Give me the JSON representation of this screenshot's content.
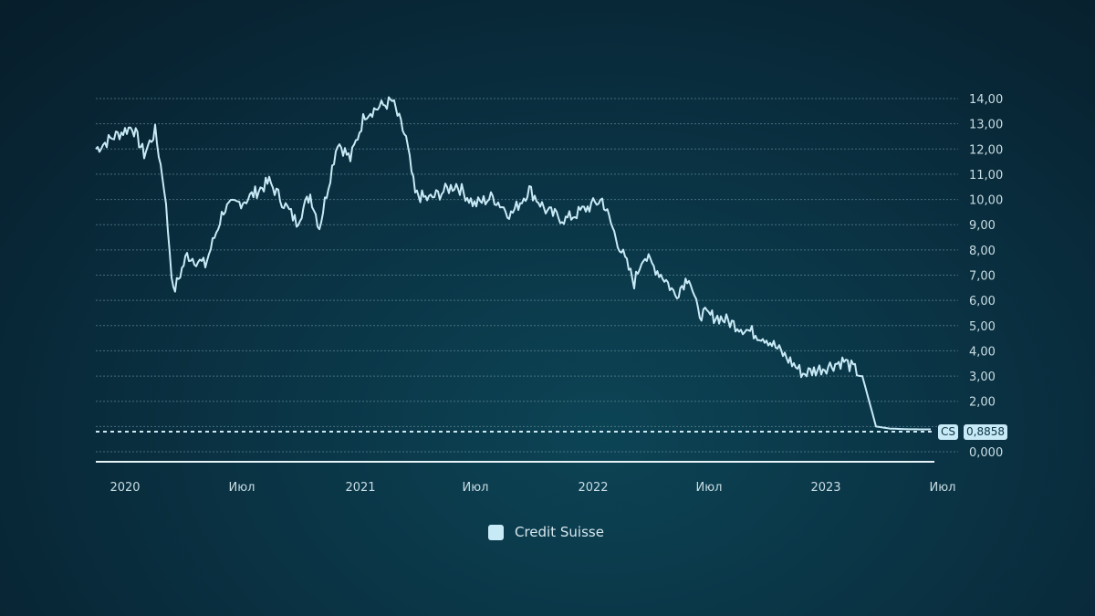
{
  "chart_data": {
    "type": "line",
    "title": "",
    "xlabel": "",
    "ylabel": "",
    "ylim": [
      0,
      14
    ],
    "grid": true,
    "legend_position": "bottom-center",
    "y_ticks": [
      "14,00",
      "13,00",
      "12,00",
      "11,00",
      "10,00",
      "9,00",
      "8,00",
      "7,00",
      "6,00",
      "5,00",
      "4,00",
      "3,00",
      "2,00",
      "0,000"
    ],
    "x_ticks": [
      "2020",
      "Июл",
      "2021",
      "Июл",
      "2022",
      "Июл",
      "2023",
      "Июл"
    ],
    "series": [
      {
        "name": "Credit Suisse",
        "ticker": "CS",
        "last_value": "0,8858",
        "color": "#c8eaf6",
        "x": [
          "2019-12",
          "2020-01",
          "2020-02",
          "2020-02",
          "2020-03",
          "2020-03",
          "2020-04",
          "2020-05",
          "2020-06",
          "2020-07",
          "2020-08",
          "2020-09",
          "2020-10",
          "2020-11",
          "2020-12",
          "2021-01",
          "2021-02",
          "2021-02",
          "2021-03",
          "2021-04",
          "2021-05",
          "2021-06",
          "2021-07",
          "2021-08",
          "2021-09",
          "2021-10",
          "2021-11",
          "2021-12",
          "2022-01",
          "2022-02",
          "2022-03",
          "2022-03",
          "2022-04",
          "2022-05",
          "2022-06",
          "2022-07",
          "2022-08",
          "2022-09",
          "2022-10",
          "2022-11",
          "2022-12",
          "2023-01",
          "2023-02",
          "2023-03",
          "2023-03",
          "2023-04",
          "2023-05",
          "2023-06"
        ],
        "values": [
          12.0,
          12.5,
          12.9,
          11.8,
          12.7,
          10.5,
          6.3,
          7.8,
          7.4,
          9.6,
          10.0,
          10.7,
          9.1,
          10.2,
          8.9,
          12.3,
          11.6,
          13.4,
          13.9,
          12.4,
          10.2,
          10.0,
          10.6,
          9.8,
          10.1,
          9.4,
          10.4,
          9.5,
          9.2,
          10.0,
          8.5,
          6.7,
          7.8,
          6.8,
          6.2,
          7.0,
          5.5,
          5.3,
          4.8,
          4.5,
          3.1,
          3.3,
          3.6,
          3.0,
          1.0,
          0.92,
          0.89,
          0.8858
        ]
      }
    ]
  },
  "legend": {
    "items": [
      {
        "label": "Credit Suisse",
        "color": "#c8eaf6"
      }
    ]
  },
  "last_price_badge": {
    "ticker": "CS",
    "value": "0,8858"
  }
}
